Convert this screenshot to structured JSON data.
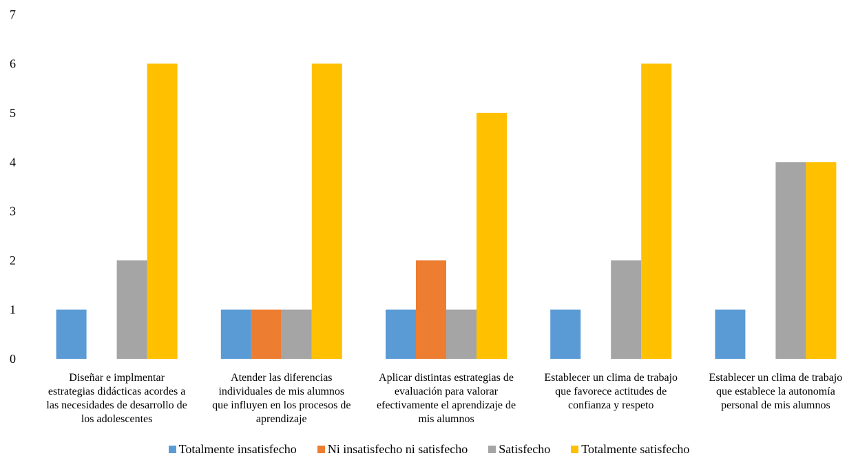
{
  "chart_data": {
    "type": "bar",
    "title": "",
    "xlabel": "",
    "ylabel": "",
    "ylim": [
      0,
      7
    ],
    "yticks": [
      0,
      1,
      2,
      3,
      4,
      5,
      6,
      7
    ],
    "grid": false,
    "legend_position": "bottom",
    "categories": [
      [
        "Diseñar e implmentar",
        "estrategias didácticas acordes a",
        "las necesidades de desarrollo de",
        "los adolescentes"
      ],
      [
        "Atender las diferencias",
        "individuales de mis alumnos",
        "que influyen en los procesos de",
        "aprendizaje"
      ],
      [
        "Aplicar distintas estrategias de",
        "evaluación para valorar",
        "efectivamente el aprendizaje de",
        "mis alumnos"
      ],
      [
        "Establecer un clima de trabajo",
        "que favorece actitudes de",
        "confianza y respeto"
      ],
      [
        "Establecer un clima de trabajo",
        "que establece la autonomía",
        "personal de mis alumnos"
      ]
    ],
    "series": [
      {
        "name": "Totalmente insatisfecho",
        "color": "#5B9BD5",
        "values": [
          1,
          1,
          1,
          1,
          1
        ]
      },
      {
        "name": "Ni insatisfecho ni satisfecho",
        "color": "#ED7D31",
        "values": [
          0,
          1,
          2,
          0,
          0
        ]
      },
      {
        "name": "Satisfecho",
        "color": "#A5A5A5",
        "values": [
          2,
          1,
          1,
          2,
          4
        ]
      },
      {
        "name": "Totalmente satisfecho",
        "color": "#FFC000",
        "values": [
          6,
          6,
          5,
          6,
          4
        ]
      }
    ]
  }
}
